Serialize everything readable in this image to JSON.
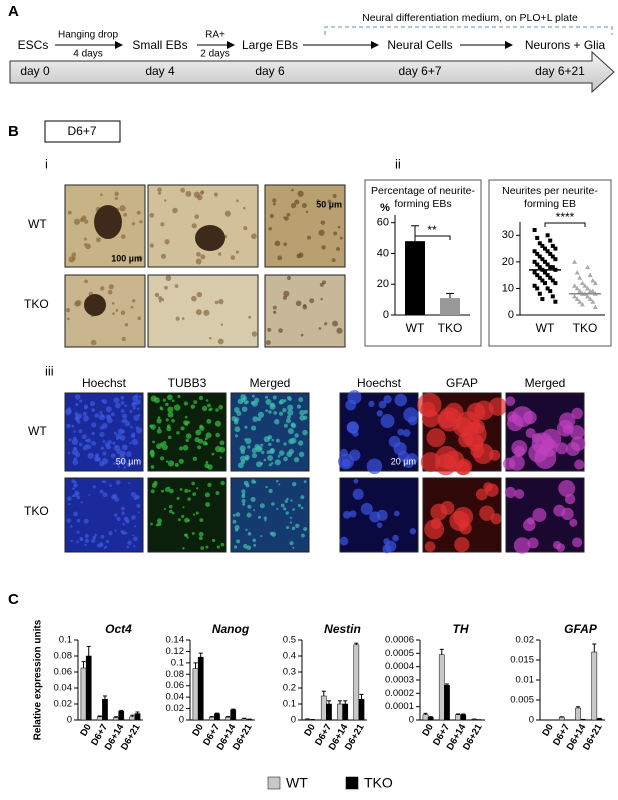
{
  "panel_labels": {
    "a": "A",
    "b": "B",
    "c": "C"
  },
  "timeline": {
    "stages": [
      "ESCs",
      "Small EBs",
      "Large EBs",
      "Neural Cells",
      "Neurons + Glia"
    ],
    "steps": [
      [
        "Hanging drop",
        "4 days"
      ],
      [
        "RA+",
        "2 days"
      ]
    ],
    "medium": "Neural differentiation medium, on PLO+L plate",
    "days": [
      "day 0",
      "day 4",
      "day 6",
      "day 6+7",
      "day 6+21"
    ]
  },
  "panel_b": {
    "timepoint": "D6+7",
    "sub_i": "i",
    "sub_ii": "ii",
    "sub_iii": "iii",
    "rows_i": [
      "WT",
      "TKO"
    ],
    "scale_i": [
      "100 µm",
      "50 µm"
    ],
    "stain_headers": [
      "Hoechst",
      "TUBB3",
      "Merged",
      "Hoechst",
      "GFAP",
      "Merged"
    ],
    "rows_iii": [
      "WT",
      "TKO"
    ],
    "scale_iii": [
      "50 µm",
      "20 µm"
    ]
  },
  "chart_data": [
    {
      "type": "bar",
      "title": "Percentage of neurite-forming EBs",
      "y_label": "%",
      "categories": [
        "WT",
        "TKO"
      ],
      "values": [
        48,
        11
      ],
      "errors": [
        10,
        3
      ],
      "colors": [
        "#000000",
        "#999999"
      ],
      "ylim": [
        0,
        65
      ],
      "yticks": [
        0,
        20,
        40,
        60
      ],
      "annotation": "**"
    },
    {
      "type": "scatter",
      "title": "Neurites per neurite-forming EB",
      "categories": [
        "WT",
        "TKO"
      ],
      "series": [
        {
          "color": "#000000",
          "values": [
            32,
            30,
            29,
            28,
            27,
            26,
            26,
            25,
            25,
            24,
            24,
            23,
            23,
            22,
            22,
            21,
            21,
            20,
            20,
            19,
            19,
            18,
            18,
            18,
            17,
            17,
            16,
            16,
            15,
            15,
            14,
            14,
            13,
            13,
            12,
            12,
            11,
            10,
            10,
            9,
            8,
            7,
            6,
            5
          ]
        },
        {
          "color": "#aaaaaa",
          "values": [
            20,
            18,
            16,
            15,
            14,
            13,
            12,
            12,
            11,
            11,
            10,
            10,
            9,
            9,
            9,
            8,
            8,
            8,
            7,
            7,
            6,
            6,
            5,
            5,
            4,
            3
          ]
        }
      ],
      "means": [
        17,
        8
      ],
      "ylim": [
        0,
        35
      ],
      "yticks": [
        0,
        10,
        20,
        30
      ],
      "annotation": "****"
    },
    {
      "type": "grouped_bar",
      "title": "Oct4",
      "y_label": "Relative expression units",
      "categories": [
        "D0",
        "D6+7",
        "D6+14",
        "D6+21"
      ],
      "series": [
        {
          "name": "WT",
          "color": "#c8c8c8",
          "values": [
            0.065,
            0.004,
            0.003,
            0.004
          ],
          "errors": [
            0.008,
            0.001,
            0.001,
            0.002
          ]
        },
        {
          "name": "TKO",
          "color": "#000000",
          "values": [
            0.08,
            0.026,
            0.011,
            0.008
          ],
          "errors": [
            0.012,
            0.004,
            0.001,
            0.002
          ]
        }
      ],
      "ylim": [
        0,
        0.1
      ],
      "yticks": [
        0,
        0.02,
        0.04,
        0.06,
        0.08,
        0.1
      ]
    },
    {
      "type": "grouped_bar",
      "title": "Nanog",
      "categories": [
        "D0",
        "D6+7",
        "D6+14",
        "D6+21"
      ],
      "series": [
        {
          "color": "#c8c8c8",
          "values": [
            0.09,
            0.005,
            0.005,
            0.002
          ],
          "errors": [
            0.01,
            0.001,
            0.001,
            0.001
          ]
        },
        {
          "color": "#000000",
          "values": [
            0.11,
            0.011,
            0.018,
            0.001
          ],
          "errors": [
            0.007,
            0.001,
            0.001,
            0.0005
          ]
        }
      ],
      "ylim": [
        0,
        0.14
      ],
      "yticks": [
        0,
        0.02,
        0.04,
        0.06,
        0.08,
        0.1,
        0.12,
        0.14
      ]
    },
    {
      "type": "grouped_bar",
      "title": "Nestin",
      "categories": [
        "D0",
        "D6+7",
        "D6+14",
        "D6+21"
      ],
      "series": [
        {
          "color": "#c8c8c8",
          "values": [
            0.005,
            0.15,
            0.1,
            0.47
          ],
          "errors": [
            0.002,
            0.03,
            0.02,
            0.01
          ]
        },
        {
          "color": "#000000",
          "values": [
            0.002,
            0.1,
            0.1,
            0.13
          ],
          "errors": [
            0.001,
            0.02,
            0.02,
            0.03
          ]
        }
      ],
      "ylim": [
        0,
        0.5
      ],
      "yticks": [
        0,
        0.1,
        0.2,
        0.3,
        0.4,
        0.5
      ]
    },
    {
      "type": "grouped_bar",
      "title": "TH",
      "categories": [
        "D0",
        "D6+7",
        "D6+14",
        "D6+21"
      ],
      "series": [
        {
          "color": "#c8c8c8",
          "values": [
            4e-05,
            0.00049,
            4e-05,
            5e-06
          ],
          "errors": [
            1e-05,
            4e-05,
            5e-06,
            2e-06
          ]
        },
        {
          "color": "#000000",
          "values": [
            2e-05,
            0.00026,
            4e-05,
            1e-06
          ],
          "errors": [
            5e-06,
            1e-05,
            5e-06,
            1e-06
          ]
        }
      ],
      "ylim": [
        0,
        0.0006
      ],
      "yticks": [
        0,
        0.0001,
        0.0002,
        0.0003,
        0.0004,
        0.0005,
        0.0006
      ]
    },
    {
      "type": "grouped_bar",
      "title": "GFAP",
      "categories": [
        "D0",
        "D6+7",
        "D6+14",
        "D6+21"
      ],
      "series": [
        {
          "color": "#c8c8c8",
          "values": [
            0,
            0.0007,
            0.003,
            0.017
          ],
          "errors": [
            0,
            0.0001,
            0.0003,
            0.002
          ]
        },
        {
          "color": "#000000",
          "values": [
            0,
            0,
            0.0001,
            0.0003
          ],
          "errors": [
            0,
            0,
            5e-05,
            0.0001
          ]
        }
      ],
      "ylim": [
        0,
        0.02
      ],
      "yticks": [
        0,
        0.005,
        0.01,
        0.015,
        0.02
      ]
    }
  ]
}
